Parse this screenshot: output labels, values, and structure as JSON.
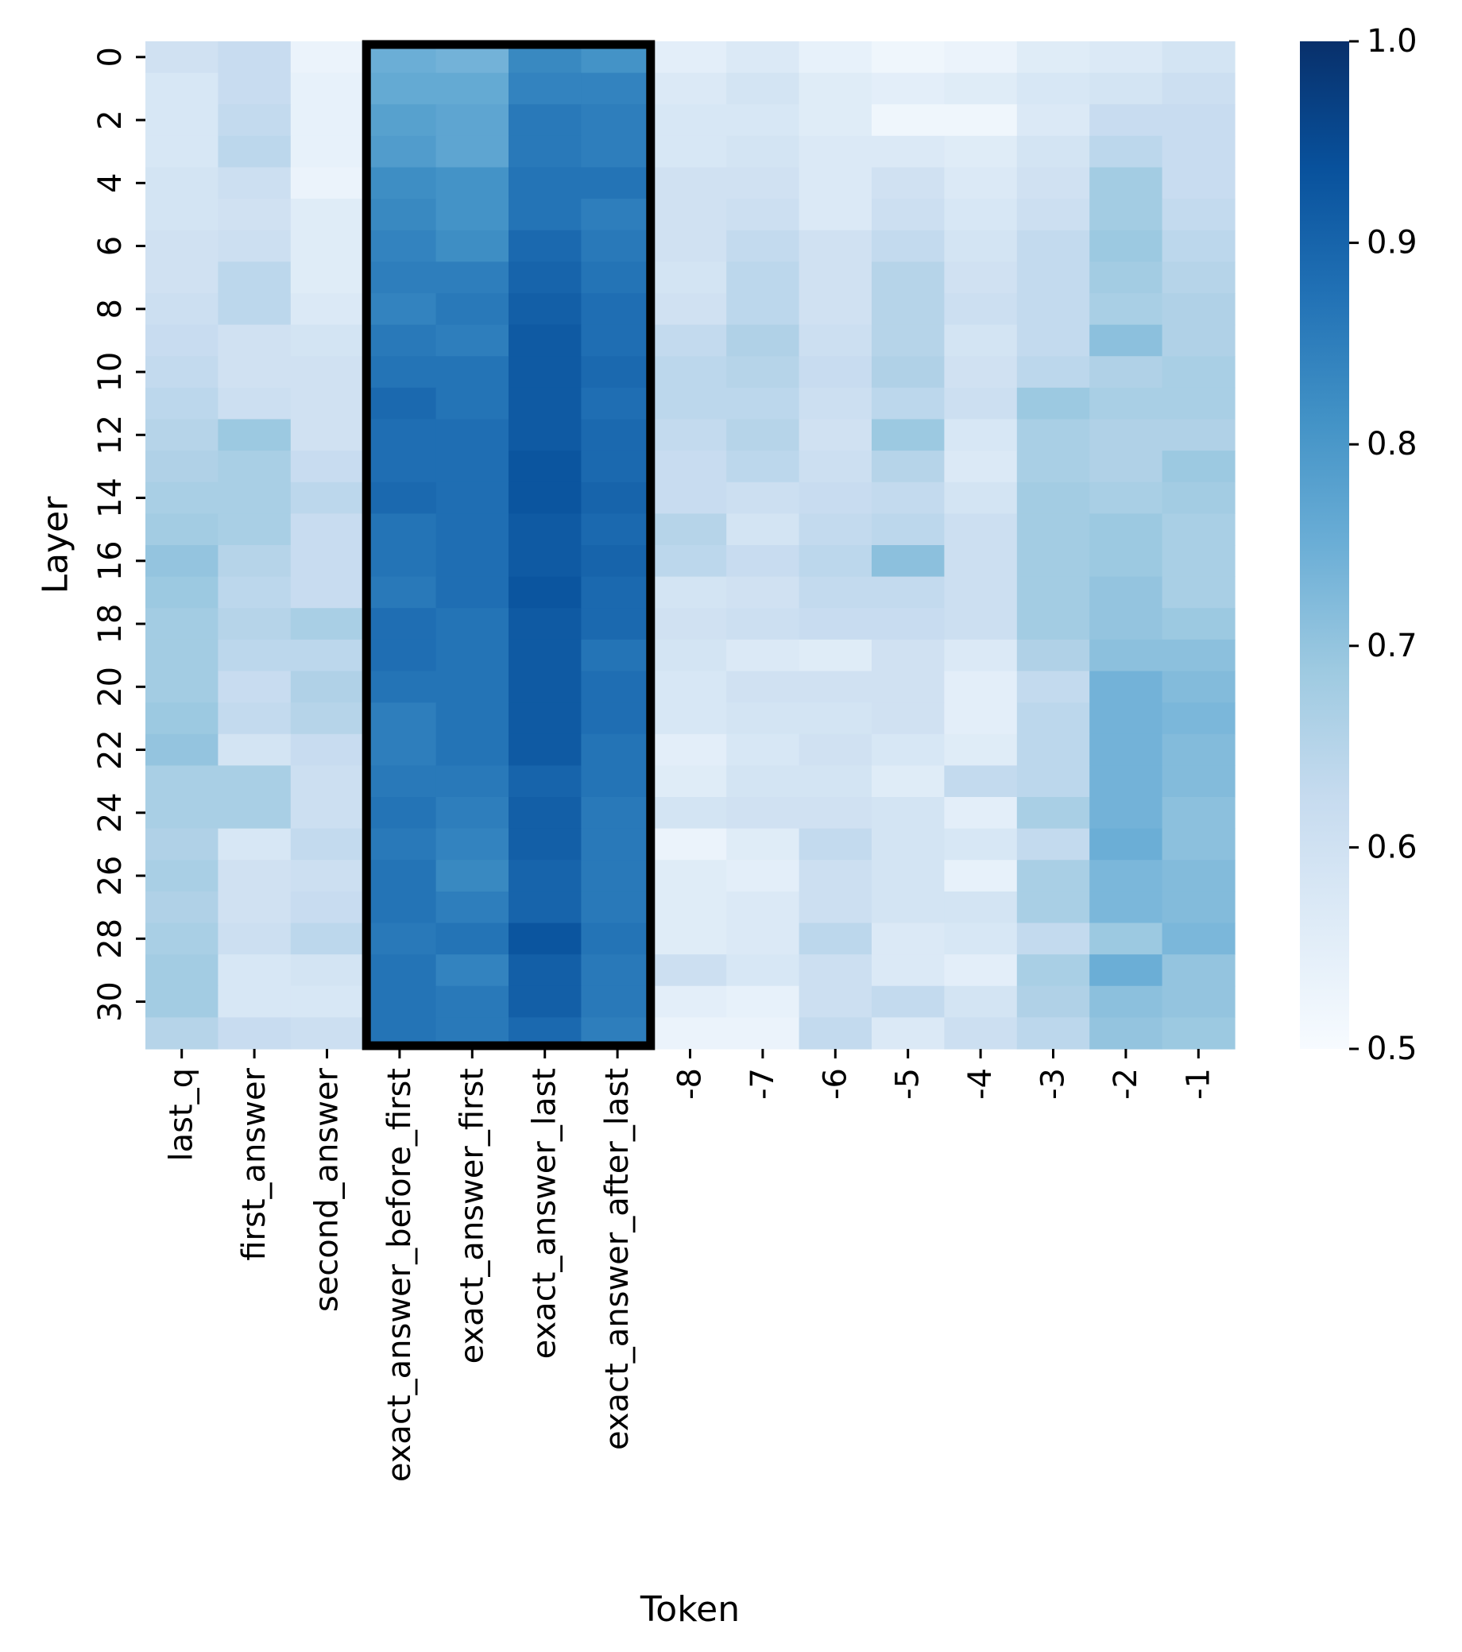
{
  "chart_data": {
    "type": "heatmap",
    "xlabel": "Token",
    "ylabel": "Layer",
    "x_categories": [
      "last_q",
      "first_answer",
      "second_answer",
      "exact_answer_before_first",
      "exact_answer_first",
      "exact_answer_last",
      "exact_answer_after_last",
      "-8",
      "-7",
      "-6",
      "-5",
      "-4",
      "-3",
      "-2",
      "-1"
    ],
    "y_categories": [
      0,
      1,
      2,
      3,
      4,
      5,
      6,
      7,
      8,
      9,
      10,
      11,
      12,
      13,
      14,
      15,
      16,
      17,
      18,
      19,
      20,
      21,
      22,
      23,
      24,
      25,
      26,
      27,
      28,
      29,
      30,
      31
    ],
    "y_tick_labels": [
      "0",
      "2",
      "4",
      "6",
      "8",
      "10",
      "12",
      "14",
      "16",
      "18",
      "20",
      "22",
      "24",
      "26",
      "28",
      "30"
    ],
    "colorbar": {
      "min": 0.5,
      "max": 1.0,
      "ticks": [
        "0.5",
        "0.6",
        "0.7",
        "0.8",
        "0.9",
        "1.0"
      ],
      "colormap": "Blues",
      "stops": [
        "#f7fbff",
        "#deebf7",
        "#c6dbef",
        "#9ecae1",
        "#6baed6",
        "#4292c6",
        "#2171b5",
        "#08519c",
        "#08306b"
      ]
    },
    "highlight": {
      "columns": [
        "exact_answer_before_first",
        "exact_answer_after_last"
      ],
      "color": "#000000"
    },
    "values": [
      [
        0.6,
        0.62,
        0.53,
        0.75,
        0.74,
        0.83,
        0.81,
        0.55,
        0.57,
        0.54,
        0.52,
        0.53,
        0.56,
        0.57,
        0.59
      ],
      [
        0.58,
        0.62,
        0.54,
        0.76,
        0.76,
        0.84,
        0.84,
        0.57,
        0.59,
        0.56,
        0.55,
        0.56,
        0.58,
        0.59,
        0.61
      ],
      [
        0.58,
        0.63,
        0.54,
        0.78,
        0.77,
        0.86,
        0.85,
        0.58,
        0.58,
        0.56,
        0.52,
        0.52,
        0.57,
        0.62,
        0.62
      ],
      [
        0.58,
        0.64,
        0.54,
        0.79,
        0.77,
        0.86,
        0.85,
        0.58,
        0.59,
        0.57,
        0.57,
        0.56,
        0.59,
        0.64,
        0.62
      ],
      [
        0.59,
        0.61,
        0.53,
        0.82,
        0.81,
        0.87,
        0.87,
        0.6,
        0.6,
        0.57,
        0.6,
        0.57,
        0.6,
        0.68,
        0.62
      ],
      [
        0.59,
        0.6,
        0.56,
        0.83,
        0.81,
        0.87,
        0.85,
        0.6,
        0.61,
        0.57,
        0.61,
        0.58,
        0.61,
        0.68,
        0.63
      ],
      [
        0.6,
        0.61,
        0.56,
        0.84,
        0.82,
        0.89,
        0.86,
        0.6,
        0.63,
        0.6,
        0.63,
        0.59,
        0.63,
        0.69,
        0.64
      ],
      [
        0.6,
        0.64,
        0.56,
        0.85,
        0.85,
        0.9,
        0.87,
        0.59,
        0.64,
        0.6,
        0.65,
        0.6,
        0.63,
        0.68,
        0.65
      ],
      [
        0.61,
        0.64,
        0.57,
        0.84,
        0.86,
        0.91,
        0.88,
        0.6,
        0.64,
        0.6,
        0.65,
        0.61,
        0.63,
        0.67,
        0.66
      ],
      [
        0.62,
        0.6,
        0.59,
        0.86,
        0.85,
        0.92,
        0.88,
        0.63,
        0.66,
        0.61,
        0.65,
        0.59,
        0.63,
        0.71,
        0.66
      ],
      [
        0.63,
        0.6,
        0.6,
        0.87,
        0.87,
        0.92,
        0.89,
        0.64,
        0.65,
        0.62,
        0.66,
        0.6,
        0.64,
        0.66,
        0.67
      ],
      [
        0.64,
        0.61,
        0.6,
        0.89,
        0.87,
        0.92,
        0.88,
        0.64,
        0.64,
        0.61,
        0.64,
        0.61,
        0.69,
        0.67,
        0.67
      ],
      [
        0.65,
        0.69,
        0.6,
        0.88,
        0.88,
        0.92,
        0.89,
        0.63,
        0.65,
        0.6,
        0.69,
        0.58,
        0.67,
        0.66,
        0.66
      ],
      [
        0.66,
        0.67,
        0.62,
        0.88,
        0.88,
        0.93,
        0.89,
        0.62,
        0.64,
        0.61,
        0.65,
        0.57,
        0.67,
        0.66,
        0.69
      ],
      [
        0.67,
        0.67,
        0.64,
        0.89,
        0.88,
        0.93,
        0.9,
        0.62,
        0.61,
        0.62,
        0.63,
        0.59,
        0.68,
        0.67,
        0.68
      ],
      [
        0.68,
        0.67,
        0.62,
        0.87,
        0.88,
        0.92,
        0.89,
        0.65,
        0.59,
        0.63,
        0.64,
        0.61,
        0.68,
        0.69,
        0.67
      ],
      [
        0.7,
        0.65,
        0.62,
        0.87,
        0.88,
        0.92,
        0.9,
        0.64,
        0.62,
        0.64,
        0.71,
        0.61,
        0.68,
        0.69,
        0.67
      ],
      [
        0.69,
        0.64,
        0.62,
        0.86,
        0.88,
        0.93,
        0.89,
        0.59,
        0.6,
        0.63,
        0.63,
        0.61,
        0.68,
        0.7,
        0.67
      ],
      [
        0.68,
        0.65,
        0.67,
        0.88,
        0.87,
        0.92,
        0.89,
        0.6,
        0.61,
        0.62,
        0.62,
        0.61,
        0.68,
        0.7,
        0.69
      ],
      [
        0.68,
        0.64,
        0.64,
        0.88,
        0.87,
        0.92,
        0.87,
        0.59,
        0.57,
        0.56,
        0.6,
        0.57,
        0.66,
        0.71,
        0.71
      ],
      [
        0.68,
        0.62,
        0.66,
        0.87,
        0.87,
        0.92,
        0.88,
        0.58,
        0.6,
        0.6,
        0.6,
        0.55,
        0.63,
        0.74,
        0.72
      ],
      [
        0.69,
        0.63,
        0.65,
        0.85,
        0.87,
        0.92,
        0.88,
        0.58,
        0.59,
        0.59,
        0.6,
        0.55,
        0.64,
        0.74,
        0.73
      ],
      [
        0.7,
        0.59,
        0.62,
        0.85,
        0.87,
        0.92,
        0.87,
        0.55,
        0.58,
        0.6,
        0.58,
        0.56,
        0.64,
        0.74,
        0.72
      ],
      [
        0.67,
        0.67,
        0.61,
        0.86,
        0.86,
        0.9,
        0.87,
        0.56,
        0.59,
        0.59,
        0.56,
        0.63,
        0.64,
        0.74,
        0.72
      ],
      [
        0.67,
        0.67,
        0.61,
        0.87,
        0.85,
        0.91,
        0.86,
        0.59,
        0.6,
        0.6,
        0.59,
        0.55,
        0.67,
        0.74,
        0.71
      ],
      [
        0.66,
        0.58,
        0.63,
        0.86,
        0.84,
        0.91,
        0.86,
        0.53,
        0.56,
        0.63,
        0.59,
        0.58,
        0.63,
        0.75,
        0.71
      ],
      [
        0.67,
        0.6,
        0.61,
        0.87,
        0.83,
        0.9,
        0.86,
        0.56,
        0.55,
        0.61,
        0.59,
        0.54,
        0.67,
        0.73,
        0.72
      ],
      [
        0.66,
        0.6,
        0.62,
        0.87,
        0.85,
        0.9,
        0.86,
        0.56,
        0.57,
        0.61,
        0.59,
        0.59,
        0.67,
        0.73,
        0.72
      ],
      [
        0.67,
        0.61,
        0.64,
        0.86,
        0.87,
        0.93,
        0.87,
        0.56,
        0.57,
        0.64,
        0.57,
        0.58,
        0.63,
        0.69,
        0.73
      ],
      [
        0.68,
        0.58,
        0.59,
        0.87,
        0.84,
        0.91,
        0.86,
        0.61,
        0.58,
        0.61,
        0.57,
        0.55,
        0.67,
        0.75,
        0.7
      ],
      [
        0.68,
        0.58,
        0.58,
        0.87,
        0.86,
        0.91,
        0.86,
        0.55,
        0.54,
        0.61,
        0.63,
        0.59,
        0.66,
        0.71,
        0.7
      ],
      [
        0.65,
        0.62,
        0.61,
        0.87,
        0.86,
        0.89,
        0.85,
        0.53,
        0.53,
        0.63,
        0.57,
        0.61,
        0.64,
        0.7,
        0.69
      ]
    ]
  }
}
